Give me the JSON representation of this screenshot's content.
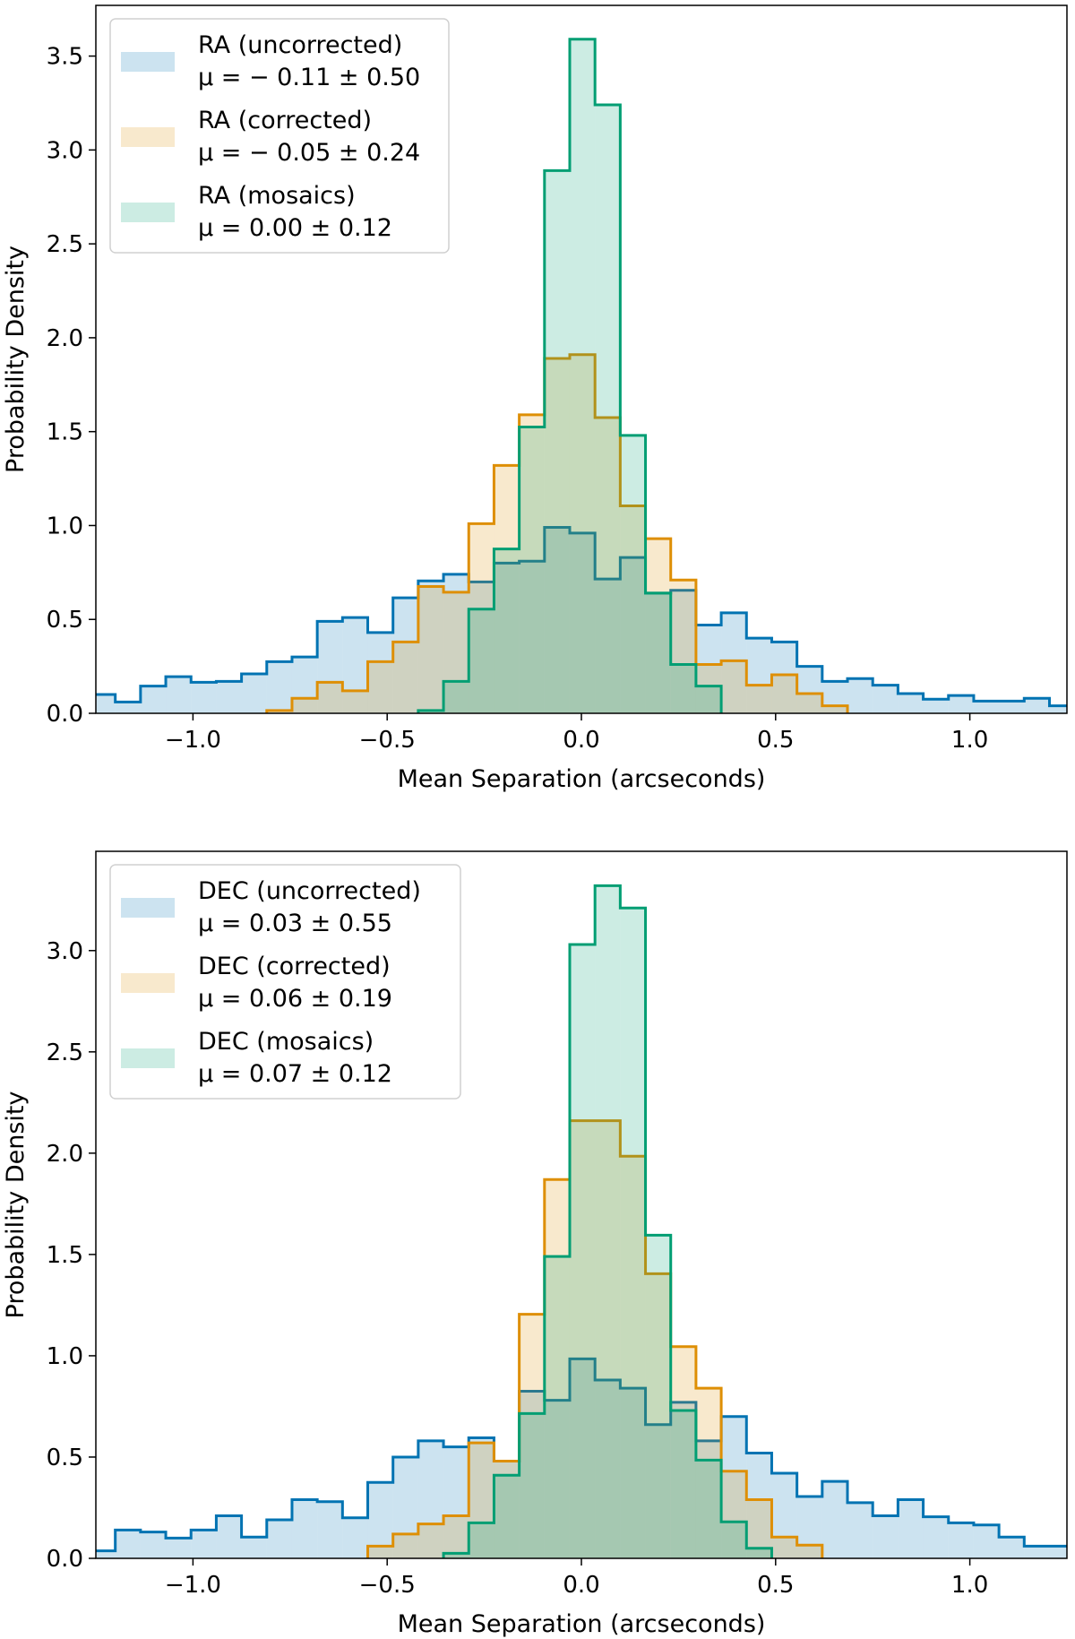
{
  "colors": {
    "uncorrected": "#0173b2",
    "corrected": "#de8f05",
    "mosaics": "#029e73"
  },
  "chart_data": [
    {
      "type": "histogram",
      "xlabel": "Mean Separation (arcseconds)",
      "ylabel": "Probability Density",
      "xlim": [
        -1.25,
        1.25
      ],
      "ylim": [
        0,
        3.77
      ],
      "xticks": [
        "−1.0",
        "−0.5",
        "0.0",
        "0.5",
        "1.0"
      ],
      "xtick_values": [
        -1.0,
        -0.5,
        0.0,
        0.5,
        1.0
      ],
      "yticks": [
        "0.0",
        "0.5",
        "1.0",
        "1.5",
        "2.0",
        "2.5",
        "3.0",
        "3.5"
      ],
      "ytick_values": [
        0,
        0.5,
        1.0,
        1.5,
        2.0,
        2.5,
        3.0,
        3.5
      ],
      "legend_position": "top-left",
      "bin_edges_start": -1.265,
      "bin_width": 0.065,
      "series": [
        {
          "name": "RA (uncorrected)",
          "stat": "μ = − 0.11 ± 0.50",
          "color_key": "uncorrected",
          "first_bin": 0,
          "values": [
            0.1,
            0.06,
            0.145,
            0.195,
            0.165,
            0.17,
            0.21,
            0.275,
            0.3,
            0.49,
            0.51,
            0.43,
            0.615,
            0.705,
            0.74,
            0.7,
            0.8,
            0.81,
            0.99,
            0.96,
            0.715,
            0.83,
            0.64,
            0.655,
            0.47,
            0.535,
            0.4,
            0.38,
            0.25,
            0.17,
            0.185,
            0.15,
            0.105,
            0.075,
            0.095,
            0.065,
            0.065,
            0.08,
            0.04
          ]
        },
        {
          "name": "RA (corrected)",
          "stat": "μ = − 0.05 ± 0.24",
          "color_key": "corrected",
          "first_bin": 7,
          "values": [
            0.015,
            0.08,
            0.165,
            0.12,
            0.275,
            0.38,
            0.675,
            0.645,
            1.01,
            1.32,
            1.59,
            1.89,
            1.91,
            1.575,
            1.105,
            0.93,
            0.71,
            0.26,
            0.28,
            0.15,
            0.205,
            0.105,
            0.04
          ]
        },
        {
          "name": "RA (mosaics)",
          "stat": "μ = 0.00 ± 0.12",
          "color_key": "mosaics",
          "first_bin": 13,
          "values": [
            0.015,
            0.17,
            0.555,
            0.875,
            1.525,
            2.89,
            3.59,
            3.24,
            1.48,
            0.64,
            0.26,
            0.145
          ]
        }
      ]
    },
    {
      "type": "histogram",
      "xlabel": "Mean Separation (arcseconds)",
      "ylabel": "Probability Density",
      "xlim": [
        -1.25,
        1.25
      ],
      "ylim": [
        0,
        3.49
      ],
      "xticks": [
        "−1.0",
        "−0.5",
        "0.0",
        "0.5",
        "1.0"
      ],
      "xtick_values": [
        -1.0,
        -0.5,
        0.0,
        0.5,
        1.0
      ],
      "yticks": [
        "0.0",
        "0.5",
        "1.0",
        "1.5",
        "2.0",
        "2.5",
        "3.0"
      ],
      "ytick_values": [
        0,
        0.5,
        1.0,
        1.5,
        2.0,
        2.5,
        3.0
      ],
      "legend_position": "top-left",
      "bin_edges_start": -1.265,
      "bin_width": 0.065,
      "series": [
        {
          "name": "DEC (uncorrected)",
          "stat": "μ = 0.03 ± 0.55",
          "color_key": "uncorrected",
          "first_bin": 0,
          "values": [
            0.037,
            0.14,
            0.13,
            0.1,
            0.14,
            0.21,
            0.105,
            0.19,
            0.29,
            0.28,
            0.2,
            0.375,
            0.5,
            0.58,
            0.55,
            0.595,
            0.48,
            0.825,
            0.78,
            0.985,
            0.88,
            0.84,
            0.66,
            0.77,
            0.58,
            0.7,
            0.52,
            0.42,
            0.305,
            0.38,
            0.275,
            0.21,
            0.29,
            0.205,
            0.175,
            0.165,
            0.105,
            0.06,
            0.06
          ]
        },
        {
          "name": "DEC (corrected)",
          "stat": "μ = 0.06 ± 0.19",
          "color_key": "corrected",
          "first_bin": 11,
          "values": [
            0.06,
            0.12,
            0.17,
            0.21,
            0.57,
            0.48,
            1.205,
            1.87,
            2.16,
            2.16,
            1.985,
            1.405,
            1.045,
            0.84,
            0.43,
            0.29,
            0.105,
            0.065
          ]
        },
        {
          "name": "DEC (mosaics)",
          "stat": "μ = 0.07 ± 0.12",
          "color_key": "mosaics",
          "first_bin": 14,
          "values": [
            0.025,
            0.175,
            0.41,
            0.715,
            1.49,
            3.03,
            3.32,
            3.21,
            1.595,
            0.73,
            0.485,
            0.18,
            0.05
          ]
        }
      ]
    }
  ]
}
